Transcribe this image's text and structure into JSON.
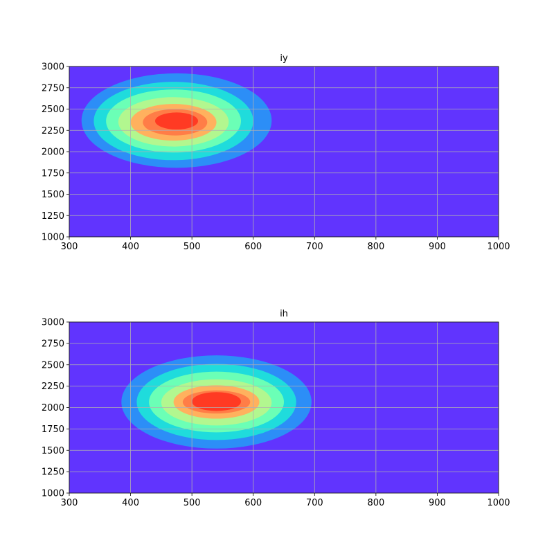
{
  "chart_data": [
    {
      "type": "contour",
      "title": "iy",
      "xlim": [
        300,
        1000
      ],
      "ylim": [
        1000,
        3000
      ],
      "xticks": [
        300,
        400,
        500,
        600,
        700,
        800,
        900,
        1000
      ],
      "yticks": [
        1000,
        1250,
        1500,
        1750,
        2000,
        2250,
        2500,
        2750,
        3000
      ],
      "grid": true,
      "colormap": "rainbow",
      "background_color": "#6134fe",
      "levels": [
        {
          "color": "#2c8ef7",
          "x_range": [
            320,
            630
          ],
          "y_range": [
            1810,
            2920
          ]
        },
        {
          "color": "#1fdcdc",
          "x_range": [
            340,
            600
          ],
          "y_range": [
            1900,
            2820
          ]
        },
        {
          "color": "#6bffb6",
          "x_range": [
            360,
            580
          ],
          "y_range": [
            1990,
            2730
          ]
        },
        {
          "color": "#b2f78f",
          "x_range": [
            380,
            560
          ],
          "y_range": [
            2060,
            2640
          ]
        },
        {
          "color": "#ffb15e",
          "x_range": [
            400,
            540
          ],
          "y_range": [
            2130,
            2560
          ]
        },
        {
          "color": "#ff7d47",
          "x_range": [
            420,
            525
          ],
          "y_range": [
            2190,
            2500
          ]
        },
        {
          "color": "#ff3a23",
          "x_range": [
            440,
            510
          ],
          "y_range": [
            2260,
            2460
          ]
        }
      ]
    },
    {
      "type": "contour",
      "title": "ih",
      "xlim": [
        300,
        1000
      ],
      "ylim": [
        1000,
        3000
      ],
      "xticks": [
        300,
        400,
        500,
        600,
        700,
        800,
        900,
        1000
      ],
      "yticks": [
        1000,
        1250,
        1500,
        1750,
        2000,
        2250,
        2500,
        2750,
        3000
      ],
      "grid": true,
      "colormap": "rainbow",
      "background_color": "#6134fe",
      "levels": [
        {
          "color": "#2c8ef7",
          "x_range": [
            385,
            695
          ],
          "y_range": [
            1520,
            2610
          ]
        },
        {
          "color": "#1fdcdc",
          "x_range": [
            410,
            670
          ],
          "y_range": [
            1620,
            2510
          ]
        },
        {
          "color": "#6bffb6",
          "x_range": [
            430,
            650
          ],
          "y_range": [
            1710,
            2420
          ]
        },
        {
          "color": "#b2f78f",
          "x_range": [
            450,
            630
          ],
          "y_range": [
            1790,
            2330
          ]
        },
        {
          "color": "#ffb15e",
          "x_range": [
            470,
            610
          ],
          "y_range": [
            1870,
            2260
          ]
        },
        {
          "color": "#ff7d47",
          "x_range": [
            485,
            595
          ],
          "y_range": [
            1930,
            2200
          ]
        },
        {
          "color": "#ff3a23",
          "x_range": [
            500,
            580
          ],
          "y_range": [
            1960,
            2180
          ]
        }
      ]
    }
  ]
}
